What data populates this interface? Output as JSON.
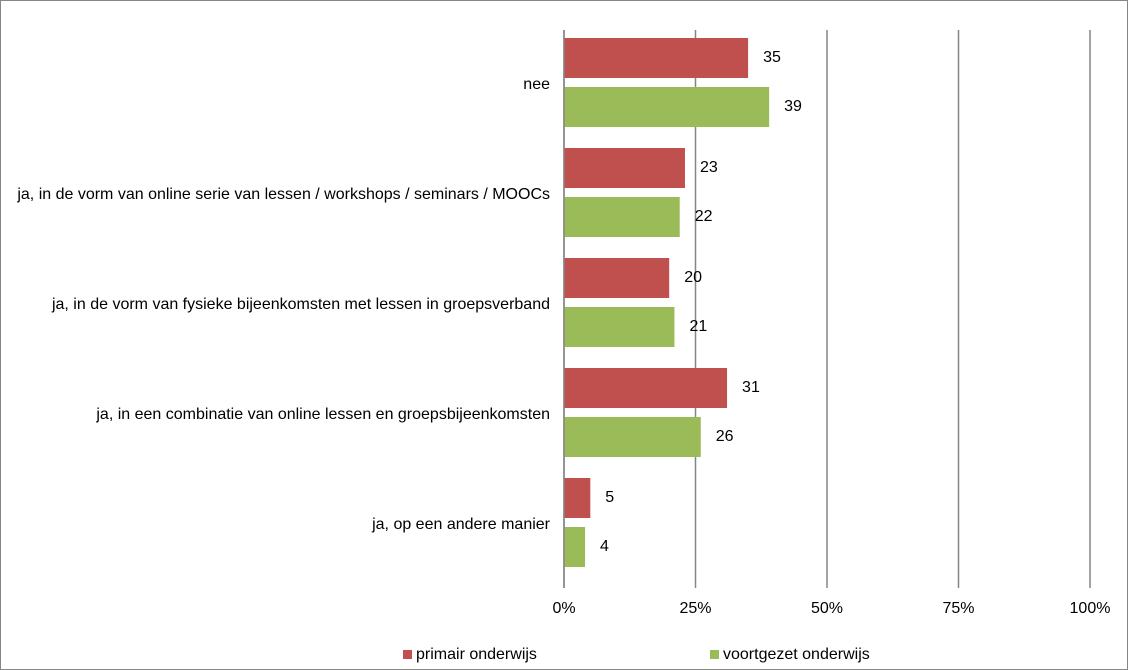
{
  "chart_data": {
    "type": "barh",
    "categories": [
      "nee",
      "ja, in de vorm van online serie van lessen / workshops / seminars / MOOCs",
      "ja, in de vorm van fysieke bijeenkomsten met lessen in groepsverband",
      "ja, in een combinatie van online lessen en groepsbijeenkomsten",
      "ja, op een andere manier"
    ],
    "series": [
      {
        "name": "primair onderwijs",
        "color": "#c0504d",
        "values": [
          35,
          23,
          20,
          31,
          5
        ]
      },
      {
        "name": "voortgezet onderwijs",
        "color": "#9bbb59",
        "values": [
          39,
          22,
          21,
          26,
          4
        ]
      }
    ],
    "xlim": [
      0,
      100
    ],
    "xticks": [
      {
        "value": 0,
        "label": "0%"
      },
      {
        "value": 25,
        "label": "25%"
      },
      {
        "value": 50,
        "label": "50%"
      },
      {
        "value": 75,
        "label": "75%"
      },
      {
        "value": 100,
        "label": "100%"
      }
    ],
    "grid": true,
    "legend": "bottom"
  }
}
